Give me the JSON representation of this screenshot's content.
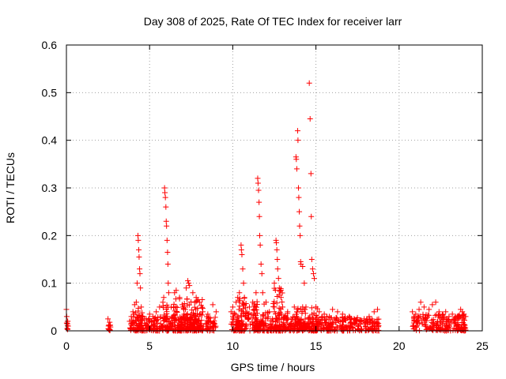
{
  "chart_data": {
    "type": "scatter",
    "title": "Day 308 of 2025, Rate Of TEC Index for receiver larr",
    "xlabel": "GPS time / hours",
    "ylabel": "ROTI / TECUs",
    "xlim": [
      0,
      25
    ],
    "ylim": [
      0,
      0.6
    ],
    "x_ticks": [
      "0",
      "5",
      "10",
      "15",
      "20",
      "25"
    ],
    "y_ticks": [
      "0",
      "0.1",
      "0.2",
      "0.3",
      "0.4",
      "0.5",
      "0.6"
    ],
    "grid": true,
    "marker": "plus",
    "color": "#ff0000",
    "series": [
      {
        "points": [
          [
            0.0,
            0.045
          ],
          [
            0.02,
            0.03
          ],
          [
            0.05,
            0.015
          ],
          [
            0.05,
            0.005
          ],
          [
            0.08,
            0.02
          ],
          [
            0.1,
            0.01
          ],
          [
            2.5,
            0.025
          ],
          [
            2.55,
            0.012
          ],
          [
            2.6,
            0.018
          ],
          [
            2.65,
            0.008
          ],
          [
            3.8,
            0.02
          ],
          [
            3.9,
            0.03
          ],
          [
            4.0,
            0.04
          ],
          [
            4.1,
            0.055
          ],
          [
            4.2,
            0.06
          ],
          [
            4.25,
            0.1
          ],
          [
            4.3,
            0.2
          ],
          [
            4.32,
            0.19
          ],
          [
            4.35,
            0.17
          ],
          [
            4.37,
            0.155
          ],
          [
            4.4,
            0.13
          ],
          [
            4.42,
            0.12
          ],
          [
            4.45,
            0.09
          ],
          [
            4.5,
            0.05
          ],
          [
            4.6,
            0.03
          ],
          [
            4.8,
            0.025
          ],
          [
            5.0,
            0.035
          ],
          [
            5.2,
            0.03
          ],
          [
            5.4,
            0.04
          ],
          [
            5.6,
            0.05
          ],
          [
            5.8,
            0.06
          ],
          [
            5.85,
            0.07
          ],
          [
            5.9,
            0.3
          ],
          [
            5.92,
            0.29
          ],
          [
            5.95,
            0.28
          ],
          [
            5.98,
            0.26
          ],
          [
            6.0,
            0.23
          ],
          [
            6.02,
            0.22
          ],
          [
            6.05,
            0.19
          ],
          [
            6.08,
            0.165
          ],
          [
            6.1,
            0.14
          ],
          [
            6.12,
            0.1
          ],
          [
            6.15,
            0.08
          ],
          [
            6.3,
            0.05
          ],
          [
            6.5,
            0.08
          ],
          [
            6.6,
            0.085
          ],
          [
            6.8,
            0.07
          ],
          [
            7.0,
            0.05
          ],
          [
            7.2,
            0.09
          ],
          [
            7.3,
            0.105
          ],
          [
            7.35,
            0.1
          ],
          [
            7.4,
            0.095
          ],
          [
            7.6,
            0.08
          ],
          [
            7.8,
            0.07
          ],
          [
            8.0,
            0.06
          ],
          [
            8.2,
            0.04
          ],
          [
            8.5,
            0.035
          ],
          [
            8.8,
            0.055
          ],
          [
            9.0,
            0.04
          ],
          [
            9.9,
            0.04
          ],
          [
            10.0,
            0.05
          ],
          [
            10.2,
            0.06
          ],
          [
            10.3,
            0.07
          ],
          [
            10.4,
            0.08
          ],
          [
            10.5,
            0.18
          ],
          [
            10.52,
            0.17
          ],
          [
            10.55,
            0.16
          ],
          [
            10.6,
            0.13
          ],
          [
            10.65,
            0.1
          ],
          [
            10.7,
            0.07
          ],
          [
            11.0,
            0.05
          ],
          [
            11.2,
            0.06
          ],
          [
            11.4,
            0.08
          ],
          [
            11.5,
            0.32
          ],
          [
            11.52,
            0.31
          ],
          [
            11.55,
            0.295
          ],
          [
            11.58,
            0.27
          ],
          [
            11.6,
            0.24
          ],
          [
            11.62,
            0.2
          ],
          [
            11.65,
            0.18
          ],
          [
            11.7,
            0.14
          ],
          [
            11.75,
            0.12
          ],
          [
            11.8,
            0.08
          ],
          [
            12.0,
            0.06
          ],
          [
            12.2,
            0.04
          ],
          [
            12.5,
            0.1
          ],
          [
            12.6,
            0.19
          ],
          [
            12.62,
            0.185
          ],
          [
            12.65,
            0.17
          ],
          [
            12.68,
            0.15
          ],
          [
            12.7,
            0.13
          ],
          [
            12.75,
            0.11
          ],
          [
            12.8,
            0.09
          ],
          [
            12.9,
            0.07
          ],
          [
            13.0,
            0.05
          ],
          [
            13.3,
            0.04
          ],
          [
            13.7,
            0.05
          ],
          [
            13.8,
            0.365
          ],
          [
            13.82,
            0.36
          ],
          [
            13.85,
            0.34
          ],
          [
            13.9,
            0.42
          ],
          [
            13.92,
            0.4
          ],
          [
            13.95,
            0.3
          ],
          [
            13.97,
            0.28
          ],
          [
            14.0,
            0.25
          ],
          [
            14.02,
            0.22
          ],
          [
            14.05,
            0.2
          ],
          [
            14.08,
            0.145
          ],
          [
            14.1,
            0.14
          ],
          [
            14.2,
            0.135
          ],
          [
            14.3,
            0.1
          ],
          [
            14.4,
            0.05
          ],
          [
            14.6,
            0.52
          ],
          [
            14.65,
            0.445
          ],
          [
            14.7,
            0.33
          ],
          [
            14.72,
            0.24
          ],
          [
            14.75,
            0.15
          ],
          [
            14.8,
            0.13
          ],
          [
            14.85,
            0.12
          ],
          [
            14.9,
            0.11
          ],
          [
            15.0,
            0.05
          ],
          [
            15.2,
            0.04
          ],
          [
            15.5,
            0.035
          ],
          [
            15.8,
            0.03
          ],
          [
            16.0,
            0.045
          ],
          [
            16.3,
            0.04
          ],
          [
            16.6,
            0.035
          ],
          [
            17.0,
            0.03
          ],
          [
            17.3,
            0.025
          ],
          [
            17.6,
            0.02
          ],
          [
            17.9,
            0.025
          ],
          [
            18.2,
            0.03
          ],
          [
            18.5,
            0.04
          ],
          [
            18.7,
            0.045
          ],
          [
            20.8,
            0.04
          ],
          [
            20.9,
            0.03
          ],
          [
            21.0,
            0.035
          ],
          [
            21.2,
            0.045
          ],
          [
            21.3,
            0.06
          ],
          [
            21.5,
            0.05
          ],
          [
            21.8,
            0.045
          ],
          [
            22.0,
            0.055
          ],
          [
            22.2,
            0.06
          ],
          [
            22.4,
            0.04
          ],
          [
            22.6,
            0.035
          ],
          [
            22.8,
            0.04
          ],
          [
            23.0,
            0.03
          ],
          [
            23.2,
            0.035
          ],
          [
            23.5,
            0.03
          ],
          [
            23.7,
            0.045
          ],
          [
            23.8,
            0.04
          ],
          [
            23.9,
            0.035
          ],
          [
            24.0,
            0.03
          ]
        ],
        "dense_bands": [
          {
            "x": [
              0.0,
              0.1
            ],
            "y": [
              0.0,
              0.02
            ]
          },
          {
            "x": [
              2.5,
              2.65
            ],
            "y": [
              0.0,
              0.015
            ]
          },
          {
            "x": [
              3.8,
              9.0
            ],
            "y": [
              0.0,
              0.03
            ]
          },
          {
            "x": [
              4.0,
              4.6
            ],
            "y": [
              0.0,
              0.05
            ]
          },
          {
            "x": [
              5.8,
              6.2
            ],
            "y": [
              0.0,
              0.06
            ]
          },
          {
            "x": [
              6.4,
              7.0
            ],
            "y": [
              0.0,
              0.08
            ]
          },
          {
            "x": [
              7.0,
              8.2
            ],
            "y": [
              0.0,
              0.07
            ]
          },
          {
            "x": [
              9.9,
              13.4
            ],
            "y": [
              0.0,
              0.04
            ]
          },
          {
            "x": [
              10.2,
              10.8
            ],
            "y": [
              0.0,
              0.08
            ]
          },
          {
            "x": [
              11.2,
              11.9
            ],
            "y": [
              0.0,
              0.07
            ]
          },
          {
            "x": [
              12.4,
              13.0
            ],
            "y": [
              0.0,
              0.09
            ]
          },
          {
            "x": [
              13.4,
              17.8
            ],
            "y": [
              0.0,
              0.03
            ]
          },
          {
            "x": [
              13.8,
              14.4
            ],
            "y": [
              0.0,
              0.05
            ]
          },
          {
            "x": [
              14.7,
              15.1
            ],
            "y": [
              0.0,
              0.05
            ]
          },
          {
            "x": [
              17.9,
              18.8
            ],
            "y": [
              0.0,
              0.025
            ]
          },
          {
            "x": [
              20.8,
              24.0
            ],
            "y": [
              0.0,
              0.035
            ]
          }
        ]
      }
    ]
  }
}
